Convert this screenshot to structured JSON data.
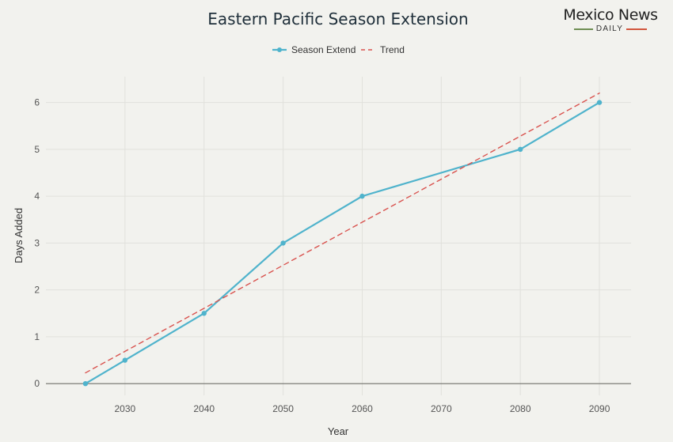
{
  "chart_data": {
    "type": "line",
    "title": "Eastern Pacific Season Extension",
    "xlabel": "Year",
    "ylabel": "Days Added",
    "x_ticks": [
      2030,
      2040,
      2050,
      2060,
      2070,
      2080,
      2090
    ],
    "y_ticks": [
      0,
      1,
      2,
      3,
      4,
      5,
      6
    ],
    "xlim": [
      2020,
      2094
    ],
    "ylim": [
      -0.25,
      6.55
    ],
    "grid": true,
    "legend_position": "top-center",
    "series": [
      {
        "name": "Season Extend",
        "style": "solid-with-markers",
        "color": "#4fb3cc",
        "x": [
          2025,
          2030,
          2040,
          2050,
          2060,
          2080,
          2090
        ],
        "y": [
          0,
          0.5,
          1.5,
          3,
          4,
          5,
          6
        ]
      },
      {
        "name": "Trend",
        "style": "dashed",
        "color": "#d9534f",
        "x": [
          2025,
          2090
        ],
        "y": [
          0.23,
          6.2
        ]
      }
    ]
  },
  "logo": {
    "main": "Mexico News",
    "sub": "DAILY"
  }
}
